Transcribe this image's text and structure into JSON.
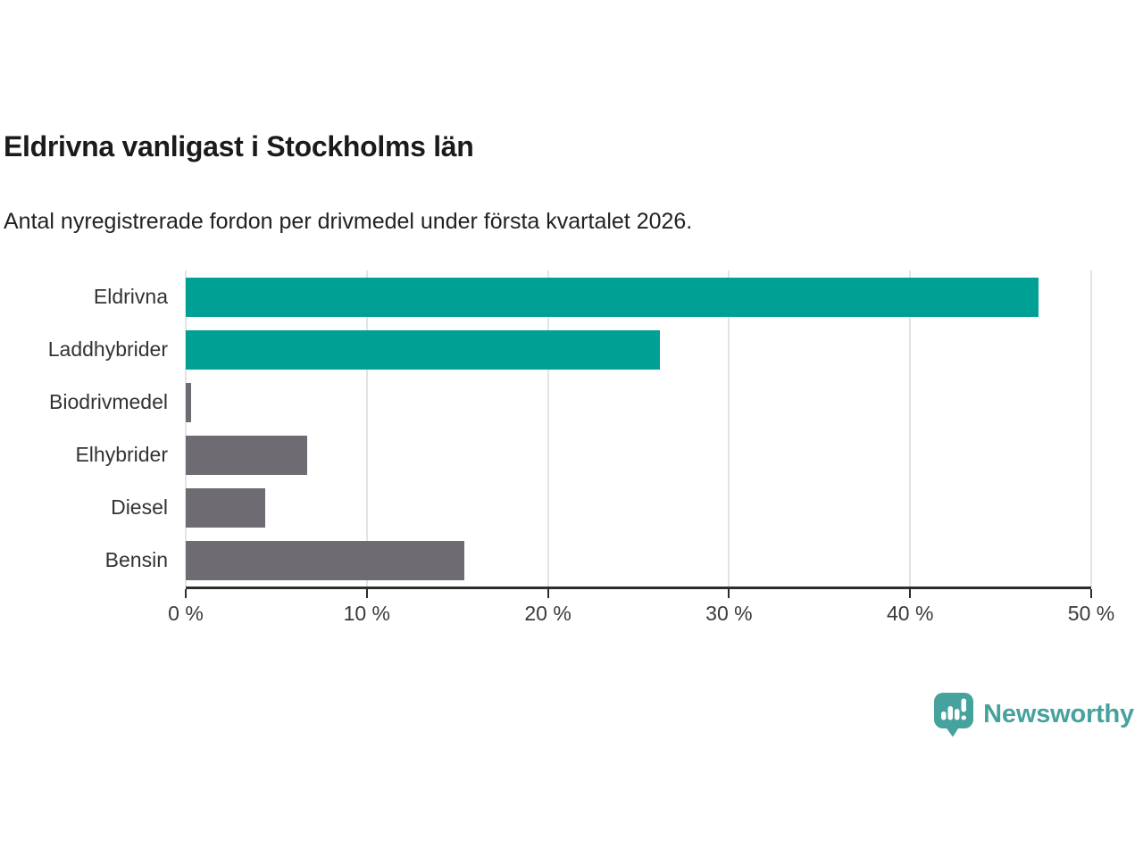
{
  "header": {
    "title": "Eldrivna vanligast i Stockholms län",
    "subtitle": "Antal nyregistrerade fordon per drivmedel under första kvartalet 2026."
  },
  "chart_data": {
    "type": "bar",
    "orientation": "horizontal",
    "title": "Eldrivna vanligast i Stockholms län",
    "subtitle": "Antal nyregistrerade fordon per drivmedel under första kvartalet 2026.",
    "categories": [
      "Eldrivna",
      "Laddhybrider",
      "Biodrivmedel",
      "Elhybrider",
      "Diesel",
      "Bensin"
    ],
    "values": [
      47.1,
      26.2,
      0.3,
      6.7,
      4.4,
      15.4
    ],
    "unit": "%",
    "bar_colors": [
      "#00a095",
      "#00a095",
      "#6e6c72",
      "#6e6c72",
      "#6e6c72",
      "#6e6c72"
    ],
    "accent_color": "#00a095",
    "muted_color": "#6e6c72",
    "xlim": [
      0,
      50
    ],
    "ticks": [
      {
        "value": 0,
        "label": "0 %"
      },
      {
        "value": 10,
        "label": "10 %"
      },
      {
        "value": 20,
        "label": "20 %"
      },
      {
        "value": 30,
        "label": "30 %"
      },
      {
        "value": 40,
        "label": "40 %"
      },
      {
        "value": 50,
        "label": "50 %"
      }
    ],
    "grid": "vertical",
    "gridline_color": "#e3e3e3",
    "axis_color": "#2d2d2d",
    "legend": "none"
  },
  "footer": {
    "brand_name": "Newsworthy",
    "brand_color": "#45a29c"
  }
}
